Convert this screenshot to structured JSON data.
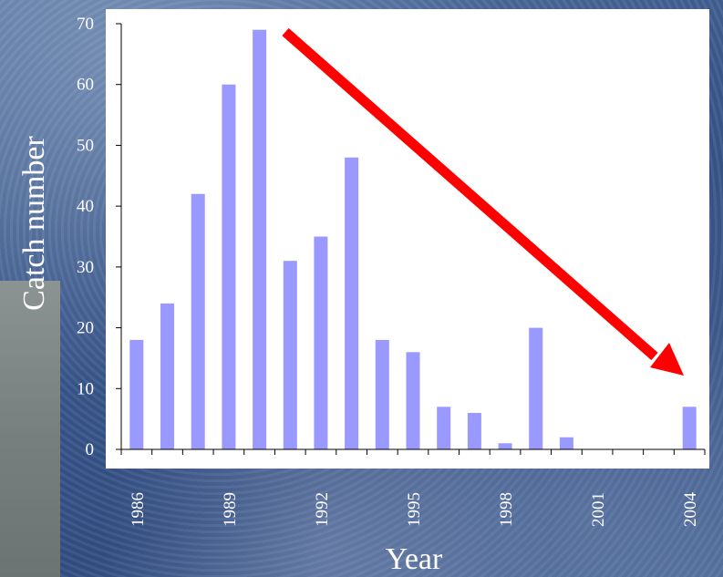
{
  "chart_data": {
    "type": "bar",
    "title": "",
    "xlabel": "Year",
    "ylabel": "Catch number",
    "ylim": [
      0,
      70
    ],
    "yticks": [
      0,
      10,
      20,
      30,
      40,
      50,
      60,
      70
    ],
    "xtick_labels": [
      "1986",
      "1989",
      "1992",
      "1995",
      "1998",
      "2001",
      "2004"
    ],
    "categories": [
      1986,
      1987,
      1988,
      1989,
      1990,
      1991,
      1992,
      1993,
      1994,
      1995,
      1996,
      1997,
      1998,
      1999,
      2000,
      2001,
      2002,
      2003,
      2004
    ],
    "values": [
      18,
      24,
      42,
      60,
      69,
      31,
      35,
      48,
      18,
      16,
      7,
      6,
      1,
      20,
      2,
      0,
      0,
      0,
      7
    ],
    "bar_color": "#9999ff",
    "arrow_color": "#ff0000",
    "grid": false,
    "annotation": "red arrow indicating declining trend"
  }
}
